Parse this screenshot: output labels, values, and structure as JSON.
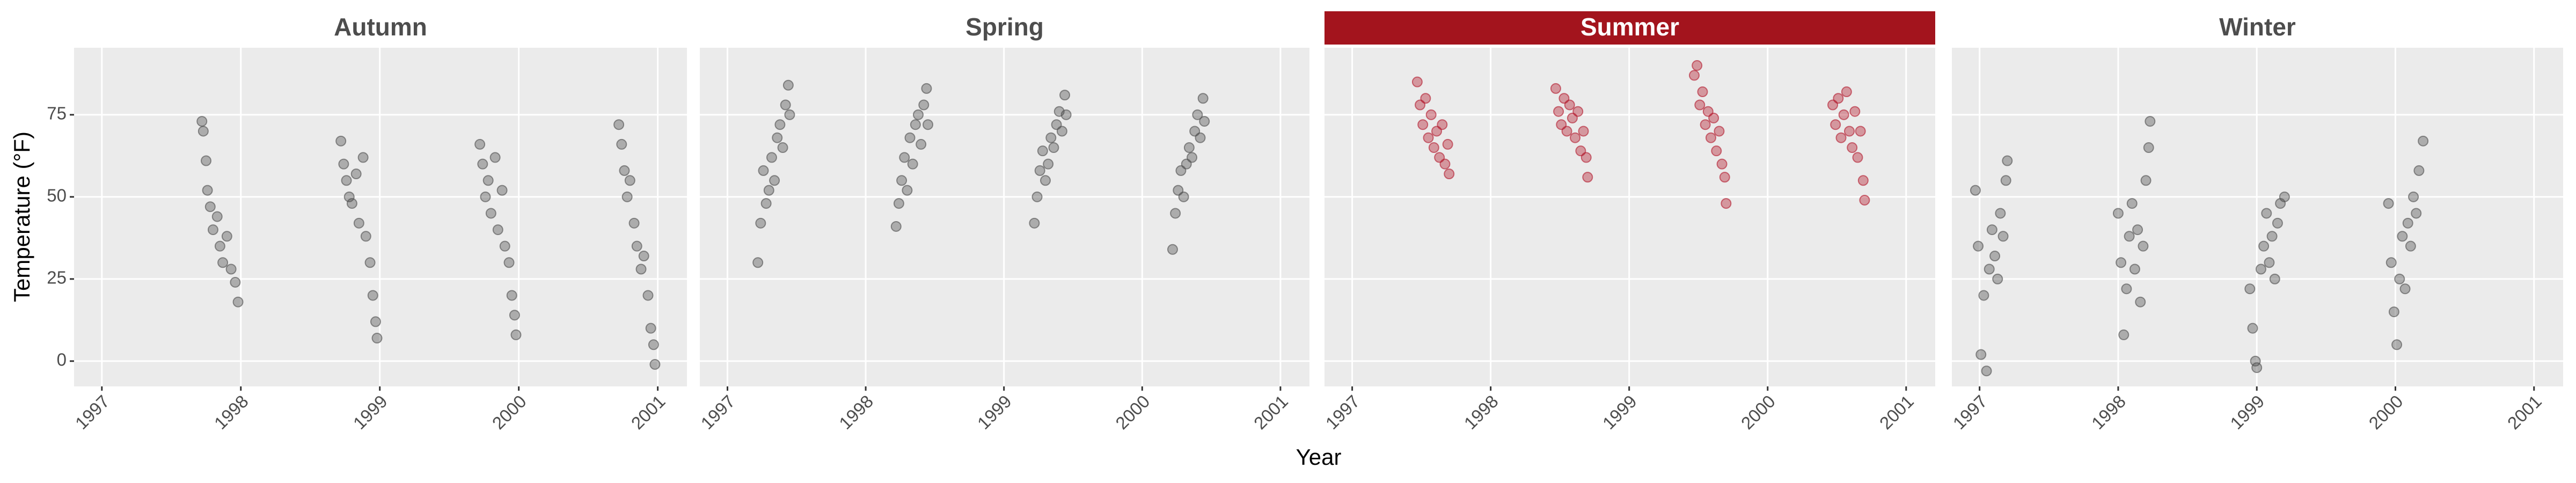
{
  "x_label": "Year",
  "y_label": "Temperature (°F)",
  "chart_data": [
    {
      "type": "scatter",
      "title": "Autumn",
      "color": "#4d4d4d",
      "strip_color": "#ffffff",
      "strip_text_color": "#4d4d4d",
      "point_alpha": 0.4,
      "background": "#ebebeb",
      "grid": true,
      "xlim": [
        1996.8,
        2001.21
      ],
      "ylim": [
        -7.7,
        95.4
      ],
      "xticks": [
        1997,
        1998,
        1999,
        2000,
        2001
      ],
      "yticks": [
        0,
        25,
        50,
        75
      ],
      "x": [
        1997.72,
        1997.73,
        1997.75,
        1997.76,
        1997.78,
        1997.8,
        1997.83,
        1997.85,
        1997.87,
        1997.9,
        1997.93,
        1997.96,
        1997.98,
        1998.72,
        1998.74,
        1998.76,
        1998.78,
        1998.8,
        1998.83,
        1998.85,
        1998.88,
        1998.9,
        1998.93,
        1998.95,
        1998.97,
        1998.98,
        1999.72,
        1999.74,
        1999.76,
        1999.78,
        1999.8,
        1999.83,
        1999.85,
        1999.88,
        1999.9,
        1999.93,
        1999.95,
        1999.97,
        1999.98,
        2000.72,
        2000.74,
        2000.76,
        2000.78,
        2000.8,
        2000.83,
        2000.85,
        2000.88,
        2000.9,
        2000.93,
        2000.95,
        2000.97,
        2000.98
      ],
      "values": [
        73,
        70,
        61,
        52,
        47,
        40,
        44,
        35,
        30,
        38,
        28,
        24,
        18,
        67,
        60,
        55,
        50,
        48,
        57,
        42,
        62,
        38,
        30,
        20,
        12,
        7,
        66,
        60,
        50,
        55,
        45,
        62,
        40,
        52,
        35,
        30,
        20,
        14,
        8,
        72,
        66,
        58,
        50,
        55,
        42,
        35,
        28,
        32,
        20,
        10,
        5,
        -1
      ]
    },
    {
      "type": "scatter",
      "title": "Spring",
      "color": "#4d4d4d",
      "strip_color": "#ffffff",
      "strip_text_color": "#4d4d4d",
      "point_alpha": 0.4,
      "background": "#ebebeb",
      "grid": true,
      "xlim": [
        1996.8,
        2001.21
      ],
      "ylim": [
        -7.7,
        95.4
      ],
      "xticks": [
        1997,
        1998,
        1999,
        2000,
        2001
      ],
      "yticks": [
        0,
        25,
        50,
        75
      ],
      "x": [
        1997.22,
        1997.24,
        1997.26,
        1997.28,
        1997.3,
        1997.32,
        1997.34,
        1997.36,
        1997.38,
        1997.4,
        1997.42,
        1997.44,
        1997.45,
        1998.22,
        1998.24,
        1998.26,
        1998.28,
        1998.3,
        1998.32,
        1998.34,
        1998.36,
        1998.38,
        1998.4,
        1998.42,
        1998.44,
        1998.45,
        1999.22,
        1999.24,
        1999.26,
        1999.28,
        1999.3,
        1999.32,
        1999.34,
        1999.36,
        1999.38,
        1999.4,
        1999.42,
        1999.44,
        1999.45,
        2000.22,
        2000.24,
        2000.26,
        2000.28,
        2000.3,
        2000.32,
        2000.34,
        2000.36,
        2000.38,
        2000.4,
        2000.42,
        2000.44,
        2000.45
      ],
      "values": [
        30,
        42,
        58,
        48,
        52,
        62,
        55,
        68,
        72,
        65,
        78,
        84,
        75,
        41,
        48,
        55,
        62,
        52,
        68,
        60,
        72,
        75,
        66,
        78,
        83,
        72,
        42,
        50,
        58,
        64,
        55,
        60,
        68,
        65,
        72,
        76,
        70,
        81,
        75,
        34,
        45,
        52,
        58,
        50,
        60,
        65,
        62,
        70,
        75,
        68,
        80,
        73
      ]
    },
    {
      "type": "scatter",
      "title": "Summer",
      "color": "#b2182b",
      "strip_color": "#a3141d",
      "strip_text_color": "#ffffff",
      "point_alpha": 0.4,
      "background": "#ebebeb",
      "grid": true,
      "xlim": [
        1996.8,
        2001.21
      ],
      "ylim": [
        -7.7,
        95.4
      ],
      "xticks": [
        1997,
        1998,
        1999,
        2000,
        2001
      ],
      "yticks": [
        0,
        25,
        50,
        75
      ],
      "x": [
        1997.47,
        1997.49,
        1997.51,
        1997.53,
        1997.55,
        1997.57,
        1997.59,
        1997.61,
        1997.63,
        1997.65,
        1997.67,
        1997.69,
        1997.7,
        1998.47,
        1998.49,
        1998.51,
        1998.53,
        1998.55,
        1998.57,
        1998.59,
        1998.61,
        1998.63,
        1998.65,
        1998.67,
        1998.69,
        1998.7,
        1999.47,
        1999.49,
        1999.51,
        1999.53,
        1999.55,
        1999.57,
        1999.59,
        1999.61,
        1999.63,
        1999.65,
        1999.67,
        1999.69,
        1999.7,
        2000.47,
        2000.49,
        2000.51,
        2000.53,
        2000.55,
        2000.57,
        2000.59,
        2000.61,
        2000.63,
        2000.65,
        2000.67,
        2000.69,
        2000.7
      ],
      "values": [
        85,
        78,
        72,
        80,
        68,
        75,
        65,
        70,
        62,
        72,
        60,
        66,
        57,
        83,
        76,
        72,
        80,
        70,
        78,
        74,
        68,
        76,
        64,
        70,
        62,
        56,
        87,
        90,
        78,
        82,
        72,
        76,
        68,
        74,
        64,
        70,
        60,
        56,
        48,
        78,
        72,
        80,
        68,
        75,
        82,
        70,
        65,
        76,
        62,
        70,
        55,
        49
      ]
    },
    {
      "type": "scatter",
      "title": "Winter",
      "color": "#4d4d4d",
      "strip_color": "#ffffff",
      "strip_text_color": "#4d4d4d",
      "point_alpha": 0.4,
      "background": "#ebebeb",
      "grid": true,
      "xlim": [
        1996.8,
        2001.21
      ],
      "ylim": [
        -7.7,
        95.4
      ],
      "xticks": [
        1997,
        1998,
        1999,
        2000,
        2001
      ],
      "yticks": [
        0,
        25,
        50,
        75
      ],
      "x": [
        1996.97,
        1996.99,
        1997.01,
        1997.03,
        1997.05,
        1997.07,
        1997.09,
        1997.11,
        1997.13,
        1997.15,
        1997.17,
        1997.19,
        1997.2,
        1998.0,
        1998.02,
        1998.04,
        1998.06,
        1998.08,
        1998.1,
        1998.12,
        1998.14,
        1998.16,
        1998.18,
        1998.2,
        1998.22,
        1998.23,
        1998.95,
        1998.97,
        1998.99,
        1999.0,
        1999.03,
        1999.05,
        1999.07,
        1999.09,
        1999.11,
        1999.13,
        1999.15,
        1999.17,
        1999.2,
        1999.95,
        1999.97,
        1999.99,
        2000.01,
        2000.03,
        2000.05,
        2000.07,
        2000.09,
        2000.11,
        2000.13,
        2000.15,
        2000.17,
        2000.2
      ],
      "values": [
        52,
        35,
        2,
        20,
        -3,
        28,
        40,
        32,
        25,
        45,
        38,
        55,
        61,
        45,
        30,
        8,
        22,
        38,
        48,
        28,
        40,
        18,
        35,
        55,
        65,
        73,
        22,
        10,
        0,
        -2,
        28,
        35,
        45,
        30,
        38,
        25,
        42,
        48,
        50,
        48,
        30,
        15,
        5,
        25,
        38,
        22,
        42,
        35,
        50,
        45,
        58,
        67
      ]
    }
  ]
}
